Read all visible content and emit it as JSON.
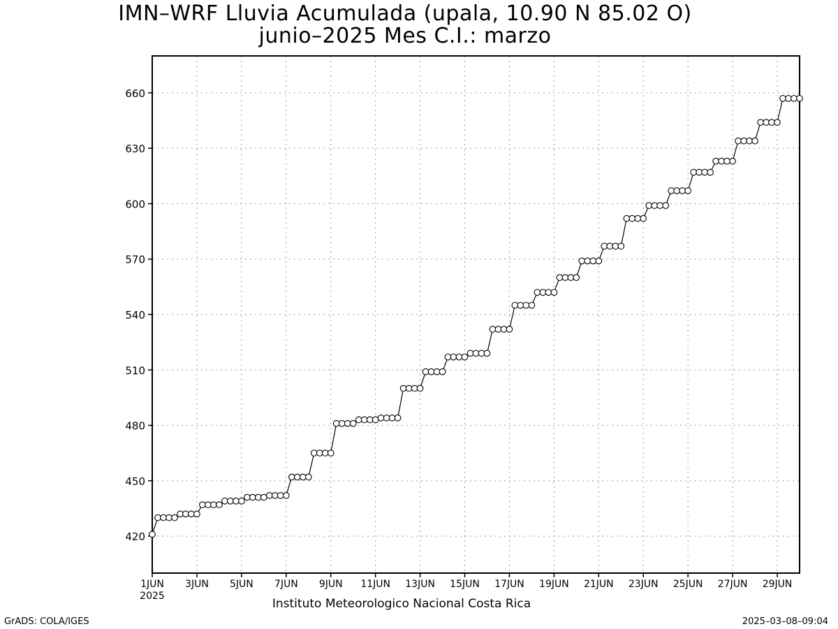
{
  "title": "IMN–WRF  Lluvia Acumulada  (upala, 10.90  N 85.02  O)",
  "subtitle": "junio–2025 Mes C.I.: marzo",
  "footer": {
    "source": "Instituto Meteorologico Nacional Costa Rica",
    "software": "GrADS: COLA/IGES",
    "timestamp": "2025–03–08–09:04"
  },
  "chart_data": {
    "type": "line",
    "title": "IMN–WRF  Lluvia Acumulada  (upala, 10.90  N 85.02  O)",
    "xlabel": "",
    "ylabel": "",
    "x_unit": "days since 1 June 2025",
    "xlim": [
      0,
      29
    ],
    "ylim": [
      400,
      680
    ],
    "yticks": [
      420,
      450,
      480,
      510,
      540,
      570,
      600,
      630,
      660
    ],
    "xticks": [
      {
        "x": 0,
        "label": "1JUN",
        "sub": "2025"
      },
      {
        "x": 2,
        "label": "3JUN"
      },
      {
        "x": 4,
        "label": "5JUN"
      },
      {
        "x": 6,
        "label": "7JUN"
      },
      {
        "x": 8,
        "label": "9JUN"
      },
      {
        "x": 10,
        "label": "11JUN"
      },
      {
        "x": 12,
        "label": "13JUN"
      },
      {
        "x": 14,
        "label": "15JUN"
      },
      {
        "x": 16,
        "label": "17JUN"
      },
      {
        "x": 18,
        "label": "19JUN"
      },
      {
        "x": 20,
        "label": "21JUN"
      },
      {
        "x": 22,
        "label": "23JUN"
      },
      {
        "x": 24,
        "label": "25JUN"
      },
      {
        "x": 26,
        "label": "27JUN"
      },
      {
        "x": 28,
        "label": "29JUN"
      }
    ],
    "grid": true,
    "marker": "open-circle",
    "series": [
      {
        "name": "",
        "step_days": 0.25,
        "x_start": 0,
        "values": [
          421,
          430,
          430,
          430,
          430,
          432,
          432,
          432,
          432,
          437,
          437,
          437,
          437,
          439,
          439,
          439,
          439,
          441,
          441,
          441,
          441,
          442,
          442,
          442,
          442,
          452,
          452,
          452,
          452,
          465,
          465,
          465,
          465,
          481,
          481,
          481,
          481,
          483,
          483,
          483,
          483,
          484,
          484,
          484,
          484,
          500,
          500,
          500,
          500,
          509,
          509,
          509,
          509,
          517,
          517,
          517,
          517,
          519,
          519,
          519,
          519,
          532,
          532,
          532,
          532,
          545,
          545,
          545,
          545,
          552,
          552,
          552,
          552,
          560,
          560,
          560,
          560,
          569,
          569,
          569,
          569,
          577,
          577,
          577,
          577,
          592,
          592,
          592,
          592,
          599,
          599,
          599,
          599,
          607,
          607,
          607,
          607,
          617,
          617,
          617,
          617,
          623,
          623,
          623,
          623,
          634,
          634,
          634,
          634,
          644,
          644,
          644,
          644,
          657,
          657,
          657,
          657
        ]
      }
    ]
  }
}
